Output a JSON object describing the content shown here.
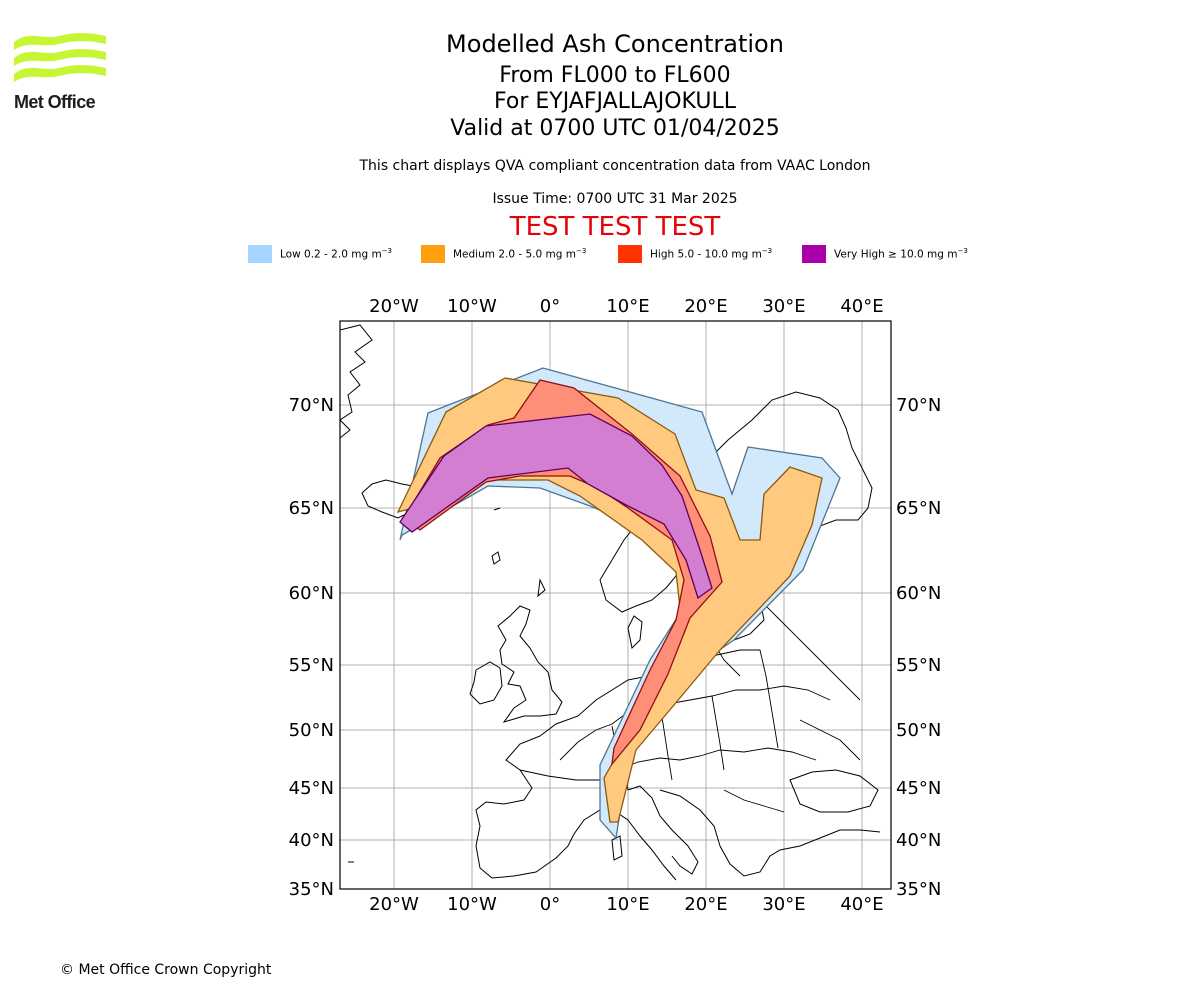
{
  "logo": {
    "name": "Met Office"
  },
  "header": {
    "title": "Modelled Ash Concentration",
    "levels": "From FL000 to FL600",
    "volcano": "For EYJAFJALLAJOKULL",
    "valid": "Valid at 0700 UTC 01/04/2025",
    "description": "This chart displays QVA compliant concentration data from VAAC London",
    "issue_time": "Issue Time: 0700 UTC 31 Mar 2025",
    "test_banner": "TEST TEST TEST"
  },
  "legend": [
    {
      "label": "Low 0.2 - 2.0 mg m",
      "unit_exp": "−3",
      "color": "#a6d6ff"
    },
    {
      "label": "Medium 2.0 - 5.0 mg m",
      "unit_exp": "−3",
      "color": "#ff9f0f"
    },
    {
      "label": "High 5.0 - 10.0 mg m",
      "unit_exp": "−3",
      "color": "#ff3300"
    },
    {
      "label": "Very High  ≥  10.0 mg m",
      "unit_exp": "−3",
      "color": "#aa00aa"
    }
  ],
  "map": {
    "lon_labels": [
      "20°W",
      "10°W",
      "0°",
      "10°E",
      "20°E",
      "30°E",
      "40°E"
    ],
    "lat_labels": [
      "70°N",
      "65°N",
      "60°N",
      "55°N",
      "50°N",
      "45°N",
      "40°N",
      "35°N"
    ],
    "colors": {
      "low_fill": "#d2e8fb",
      "low_edge": "#4f7595",
      "medium_fill": "#ffca80",
      "medium_edge": "#8a5a10",
      "high_fill": "#ff8e78",
      "high_edge": "#8f1010",
      "veryhigh_fill": "#d47ed2",
      "veryhigh_edge": "#5c005c",
      "grid": "#b0b0b0",
      "coast": "#000000"
    }
  },
  "footer": {
    "copyright": "© Met Office Crown Copyright"
  }
}
